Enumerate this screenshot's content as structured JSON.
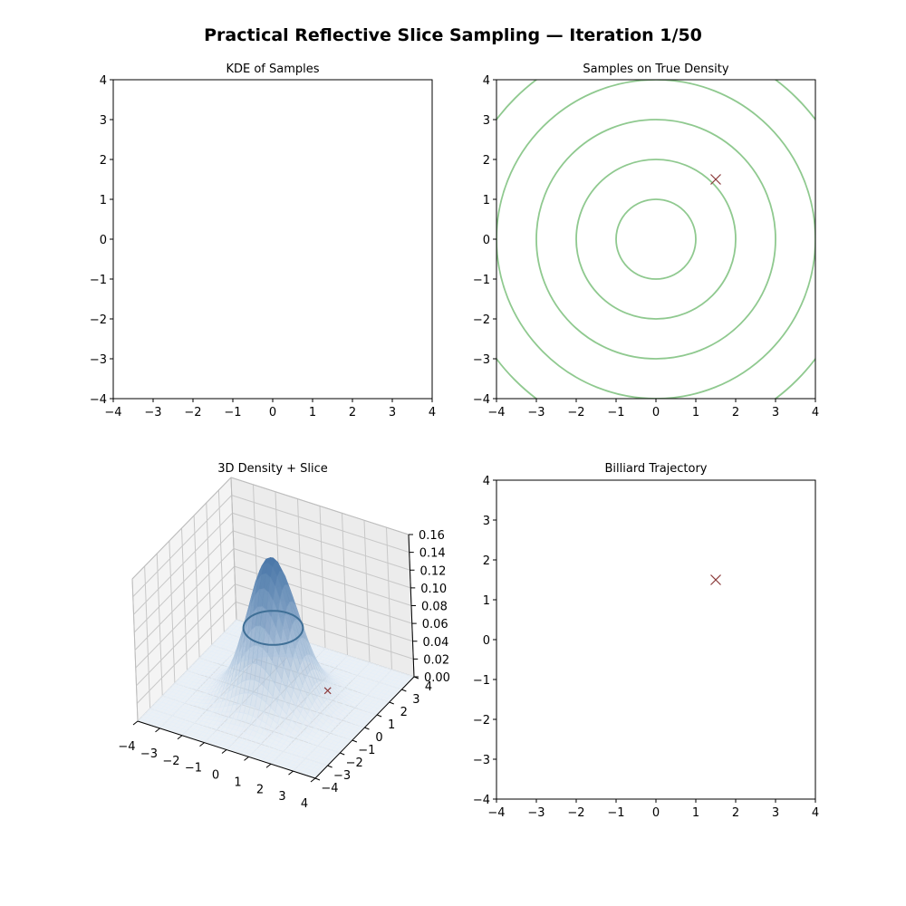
{
  "figure": {
    "suptitle": "Practical Reflective Slice Sampling  —  Iteration 1/50"
  },
  "colors": {
    "contour": "#8fc98f",
    "marker": "#8b3a3a",
    "surface_top": "#4a77a8",
    "surface_low": "#e6eff8",
    "slice_ring": "#3f6f96"
  },
  "chart_data": [
    {
      "id": "kde",
      "type": "heatmap",
      "title": "KDE of Samples",
      "xlim": [
        -4,
        4
      ],
      "ylim": [
        -4,
        4
      ],
      "xticks": [
        -4,
        -3,
        -2,
        -1,
        0,
        1,
        2,
        3,
        4
      ],
      "yticks": [
        -4,
        -3,
        -2,
        -1,
        0,
        1,
        2,
        3,
        4
      ],
      "xtick_labels": [
        "−4",
        "−3",
        "−2",
        "−1",
        "0",
        "1",
        "2",
        "3",
        "4"
      ],
      "ytick_labels": [
        "−4",
        "−3",
        "−2",
        "−1",
        "0",
        "1",
        "2",
        "3",
        "4"
      ],
      "grid": false
    },
    {
      "id": "true_density",
      "type": "scatter",
      "title": "Samples on True Density",
      "xlim": [
        -4,
        4
      ],
      "ylim": [
        -4,
        4
      ],
      "xticks": [
        -4,
        -3,
        -2,
        -1,
        0,
        1,
        2,
        3,
        4
      ],
      "yticks": [
        -4,
        -3,
        -2,
        -1,
        0,
        1,
        2,
        3,
        4
      ],
      "xtick_labels": [
        "−4",
        "−3",
        "−2",
        "−1",
        "0",
        "1",
        "2",
        "3",
        "4"
      ],
      "ytick_labels": [
        "−4",
        "−3",
        "−2",
        "−1",
        "0",
        "1",
        "2",
        "3",
        "4"
      ],
      "contour_radii": [
        1,
        2,
        3,
        4,
        5
      ],
      "contour_center": [
        0,
        0
      ],
      "points": [
        {
          "x": 1.5,
          "y": 1.5,
          "marker": "x"
        }
      ],
      "grid": false
    },
    {
      "id": "density3d",
      "type": "surface3d",
      "title": "3D Density + Slice",
      "xlim": [
        -4,
        4
      ],
      "ylim": [
        -4,
        4
      ],
      "zlim": [
        0,
        0.16
      ],
      "xticks": [
        -4,
        -3,
        -2,
        -1,
        0,
        1,
        2,
        3,
        4
      ],
      "yticks": [
        -4,
        -3,
        -2,
        -1,
        0,
        1,
        2,
        3,
        4
      ],
      "zticks": [
        0,
        0.02,
        0.04,
        0.06,
        0.08,
        0.1,
        0.12,
        0.14,
        0.16
      ],
      "xtick_labels": [
        "−4",
        "−3",
        "−2",
        "−1",
        "0",
        "1",
        "2",
        "3",
        "4"
      ],
      "ytick_labels": [
        "−4",
        "−3",
        "−2",
        "−1",
        "0",
        "1",
        "2",
        "3",
        "4"
      ],
      "ztick_labels": [
        "0.00",
        "0.02",
        "0.04",
        "0.06",
        "0.08",
        "0.10",
        "0.12",
        "0.14",
        "0.16"
      ],
      "peak_density": 0.159,
      "slice_level": 0.08,
      "points": [
        {
          "x": 1.5,
          "y": 1.5,
          "z": 0,
          "marker": "x"
        }
      ],
      "grid": true
    },
    {
      "id": "billiard",
      "type": "scatter",
      "title": "Billiard Trajectory",
      "xlim": [
        -4,
        4
      ],
      "ylim": [
        -4,
        4
      ],
      "xticks": [
        -4,
        -3,
        -2,
        -1,
        0,
        1,
        2,
        3,
        4
      ],
      "yticks": [
        -4,
        -3,
        -2,
        -1,
        0,
        1,
        2,
        3,
        4
      ],
      "xtick_labels": [
        "−4",
        "−3",
        "−2",
        "−1",
        "0",
        "1",
        "2",
        "3",
        "4"
      ],
      "ytick_labels": [
        "−4",
        "−3",
        "−2",
        "−1",
        "0",
        "1",
        "2",
        "3",
        "4"
      ],
      "points": [
        {
          "x": 1.5,
          "y": 1.5,
          "marker": "x"
        }
      ],
      "grid": false
    }
  ]
}
